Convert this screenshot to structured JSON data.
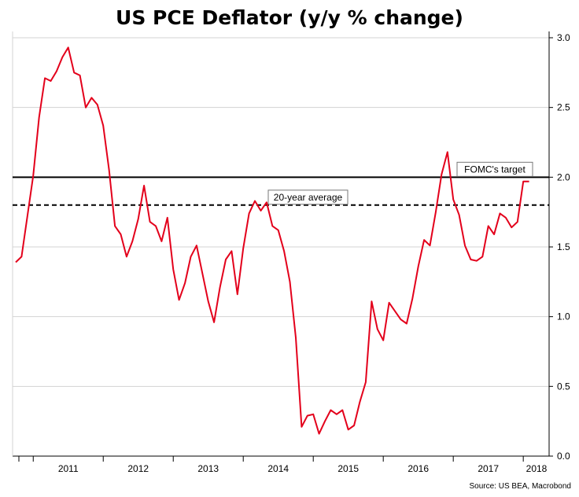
{
  "chart_data": {
    "type": "line",
    "title": "US PCE Deflator (y/y % change)",
    "source": "Source: US BEA, Macrobond",
    "xlabel": "",
    "ylabel": "",
    "ylim": [
      0,
      3.0
    ],
    "yticks": [
      0.0,
      0.5,
      1.0,
      1.5,
      2.0,
      2.5,
      3.0
    ],
    "ytick_labels": [
      "0.0",
      "0.5",
      "1.0",
      "1.5",
      "2.0",
      "2.5",
      "3.0"
    ],
    "year_labels": [
      "2011",
      "2012",
      "2013",
      "2014",
      "2015",
      "2016",
      "2017",
      "2018"
    ],
    "grid": true,
    "series_color": "#e3001b",
    "x": [
      "2010-10",
      "2010-11",
      "2010-12",
      "2011-01",
      "2011-02",
      "2011-03",
      "2011-04",
      "2011-05",
      "2011-06",
      "2011-07",
      "2011-08",
      "2011-09",
      "2011-10",
      "2011-11",
      "2011-12",
      "2012-01",
      "2012-02",
      "2012-03",
      "2012-04",
      "2012-05",
      "2012-06",
      "2012-07",
      "2012-08",
      "2012-09",
      "2012-10",
      "2012-11",
      "2012-12",
      "2013-01",
      "2013-02",
      "2013-03",
      "2013-04",
      "2013-05",
      "2013-06",
      "2013-07",
      "2013-08",
      "2013-09",
      "2013-10",
      "2013-11",
      "2013-12",
      "2014-01",
      "2014-02",
      "2014-03",
      "2014-04",
      "2014-05",
      "2014-06",
      "2014-07",
      "2014-08",
      "2014-09",
      "2014-10",
      "2014-11",
      "2014-12",
      "2015-01",
      "2015-02",
      "2015-03",
      "2015-04",
      "2015-05",
      "2015-06",
      "2015-07",
      "2015-08",
      "2015-09",
      "2015-10",
      "2015-11",
      "2015-12",
      "2016-01",
      "2016-02",
      "2016-03",
      "2016-04",
      "2016-05",
      "2016-06",
      "2016-07",
      "2016-08",
      "2016-09",
      "2016-10",
      "2016-11",
      "2016-12",
      "2017-01",
      "2017-02",
      "2017-03",
      "2017-04",
      "2017-05",
      "2017-06",
      "2017-07",
      "2017-08",
      "2017-09",
      "2017-10",
      "2017-11",
      "2017-12",
      "2018-01",
      "2018-02",
      "2018-03"
    ],
    "series": [
      {
        "values": [
          1.39,
          1.43,
          1.72,
          2.01,
          2.43,
          2.71,
          2.69,
          2.76,
          2.86,
          2.93,
          2.75,
          2.73,
          2.5,
          2.57,
          2.52,
          2.37,
          2.05,
          1.65,
          1.59,
          1.43,
          1.54,
          1.7,
          1.94,
          1.68,
          1.65,
          1.54,
          1.71,
          1.34,
          1.12,
          1.24,
          1.43,
          1.51,
          1.31,
          1.11,
          0.96,
          1.21,
          1.41,
          1.47,
          1.16,
          1.49,
          1.74,
          1.83,
          1.76,
          1.82,
          1.65,
          1.62,
          1.47,
          1.25,
          0.85,
          0.21,
          0.29,
          0.3,
          0.16,
          0.25,
          0.33,
          0.3,
          0.33,
          0.19,
          0.22,
          0.39,
          0.53,
          1.11,
          0.91,
          0.83,
          1.1,
          1.04,
          0.98,
          0.95,
          1.13,
          1.36,
          1.55,
          1.51,
          1.75,
          2.02,
          2.18,
          1.84,
          1.73,
          1.51,
          1.41,
          1.4,
          1.43,
          1.65,
          1.59,
          1.74,
          1.71,
          1.64,
          1.68,
          1.97,
          1.97,
          null
        ]
      }
    ],
    "reference_lines": [
      {
        "value": 2.0,
        "style": "solid",
        "label": "FOMC's target"
      },
      {
        "value": 1.8,
        "style": "dashed",
        "label": "20-year average"
      }
    ]
  }
}
